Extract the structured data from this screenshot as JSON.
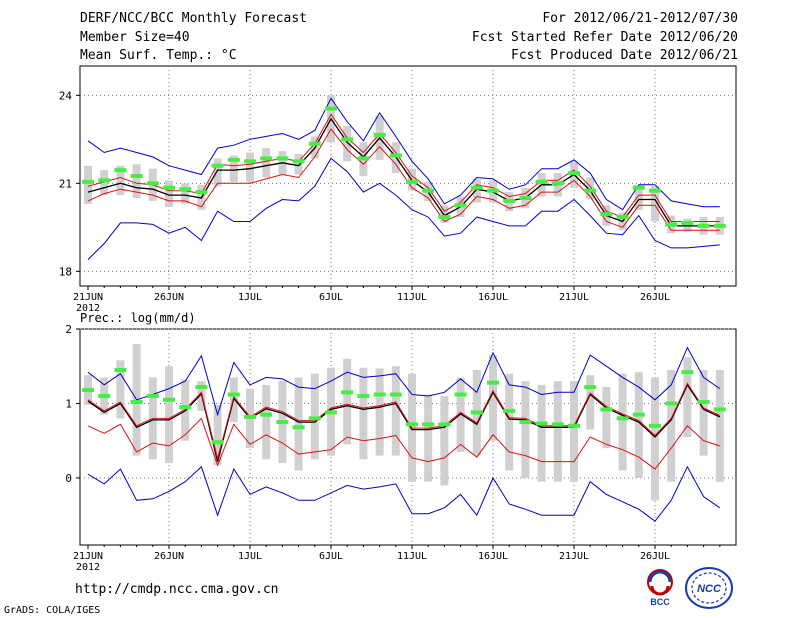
{
  "header": {
    "title": "DERF/NCC/BCC Monthly Forecast",
    "member_size": "Member Size=40",
    "variable1": "Mean Surf. Temp.: °C",
    "period": "For 2012/06/21-2012/07/30",
    "fcst_started": "Fcst Started Refer Date 2012/06/20",
    "fcst_produced": "Fcst Produced Date 2012/06/21"
  },
  "footer": {
    "url": "http://cmdp.ncc.cma.gov.cn",
    "grads": "GrADS: COLA/IGES"
  },
  "logos": {
    "bcc": "BCC",
    "ncc": "NCC"
  },
  "colors": {
    "ensemble_bar": "#d0d0d0",
    "green_mark": "#44ee44",
    "mean_line": "#000000",
    "red_line": "#dd1111",
    "blue_line": "#0000cc",
    "grid": "#777777"
  },
  "chart_data": [
    {
      "type": "line",
      "title": "Mean Surf. Temp.: °C",
      "x_tick_labels": [
        "21JUN",
        "26JUN",
        "1JUL",
        "6JUL",
        "11JUL",
        "16JUL",
        "21JUL",
        "26JUL"
      ],
      "x_sub_label": "2012",
      "ylim": [
        17.5,
        25
      ],
      "y_ticks": [
        18,
        21,
        24
      ],
      "x_days": [
        0,
        1,
        2,
        3,
        4,
        5,
        6,
        7,
        8,
        9,
        10,
        11,
        12,
        13,
        14,
        15,
        16,
        17,
        18,
        19,
        20,
        21,
        22,
        23,
        24,
        25,
        26,
        27,
        28,
        29,
        30,
        31,
        32,
        33,
        34,
        35,
        36,
        37,
        38,
        39
      ],
      "series": [
        {
          "name": "ensemble mean",
          "color": "black",
          "values": [
            20.7,
            20.85,
            21.0,
            20.85,
            20.8,
            20.6,
            20.6,
            20.5,
            21.45,
            21.45,
            21.5,
            21.6,
            21.7,
            21.6,
            22.2,
            23.2,
            22.4,
            21.9,
            22.55,
            21.9,
            21.1,
            20.7,
            19.9,
            20.2,
            20.8,
            20.7,
            20.4,
            20.5,
            20.95,
            20.95,
            21.3,
            20.75,
            19.9,
            19.7,
            20.45,
            20.45,
            19.55,
            19.55,
            19.55,
            19.55
          ]
        },
        {
          "name": "upper red",
          "color": "red",
          "values": [
            20.9,
            21.05,
            21.2,
            21.0,
            20.95,
            20.75,
            20.75,
            20.65,
            21.65,
            21.6,
            21.65,
            21.75,
            21.85,
            21.75,
            22.35,
            23.35,
            22.55,
            22.05,
            22.7,
            22.05,
            21.25,
            20.85,
            20.05,
            20.35,
            20.95,
            20.85,
            20.55,
            20.65,
            21.1,
            21.1,
            21.45,
            20.9,
            20.05,
            19.85,
            20.6,
            20.6,
            19.7,
            19.7,
            19.7,
            19.7
          ]
        },
        {
          "name": "lower red",
          "color": "red",
          "values": [
            20.4,
            20.65,
            20.8,
            20.7,
            20.6,
            20.4,
            20.4,
            20.2,
            21.0,
            21.0,
            21.0,
            21.15,
            21.3,
            21.2,
            21.9,
            22.85,
            22.15,
            21.65,
            22.25,
            21.65,
            20.85,
            20.5,
            19.7,
            19.95,
            20.55,
            20.45,
            20.15,
            20.25,
            20.7,
            20.7,
            21.1,
            20.55,
            19.7,
            19.5,
            20.25,
            20.25,
            19.4,
            19.4,
            19.4,
            19.4
          ]
        },
        {
          "name": "upper blue",
          "color": "blue",
          "values": [
            22.45,
            22.05,
            22.2,
            22.05,
            21.9,
            21.6,
            21.45,
            21.3,
            22.2,
            22.3,
            22.5,
            22.6,
            22.7,
            22.5,
            22.8,
            23.9,
            23.1,
            22.45,
            23.4,
            22.6,
            21.75,
            21.15,
            20.3,
            20.6,
            21.2,
            21.15,
            20.8,
            20.95,
            21.5,
            21.5,
            21.8,
            21.35,
            20.45,
            20.1,
            20.95,
            20.95,
            20.4,
            20.3,
            20.2,
            20.2
          ]
        },
        {
          "name": "lower blue",
          "color": "blue",
          "values": [
            18.4,
            18.95,
            19.65,
            19.65,
            19.6,
            19.3,
            19.5,
            19.05,
            20.05,
            19.7,
            19.7,
            20.15,
            20.45,
            20.4,
            20.9,
            21.85,
            21.4,
            20.7,
            21.0,
            20.6,
            20.1,
            19.85,
            19.2,
            19.3,
            19.85,
            19.7,
            19.55,
            19.55,
            20.05,
            20.05,
            20.45,
            19.9,
            19.3,
            19.25,
            19.9,
            19.05,
            18.8,
            18.8,
            18.85,
            18.9
          ]
        },
        {
          "name": "green mark",
          "color": "green",
          "values": [
            21.05,
            21.1,
            21.45,
            21.25,
            21.0,
            20.85,
            20.8,
            20.7,
            21.6,
            21.8,
            21.75,
            21.85,
            21.85,
            21.75,
            22.35,
            23.55,
            22.5,
            21.85,
            22.65,
            21.95,
            21.05,
            20.75,
            19.85,
            20.25,
            20.85,
            20.75,
            20.4,
            20.5,
            21.05,
            21.0,
            21.35,
            20.75,
            19.95,
            19.85,
            20.85,
            20.75,
            19.6,
            19.65,
            19.55,
            19.55
          ]
        }
      ],
      "ensemble_range": {
        "top": [
          21.6,
          21.45,
          21.6,
          21.65,
          21.5,
          21.1,
          21.0,
          20.95,
          21.85,
          21.95,
          22.05,
          22.2,
          22.1,
          22.0,
          22.6,
          24.0,
          22.95,
          22.4,
          23.3,
          22.4,
          21.5,
          21.05,
          20.25,
          20.55,
          21.15,
          21.1,
          20.7,
          20.85,
          21.35,
          21.35,
          21.75,
          21.2,
          20.25,
          20.0,
          20.95,
          20.9,
          19.9,
          19.8,
          19.85,
          19.85
        ],
        "bottom": [
          20.3,
          20.6,
          20.6,
          20.5,
          20.4,
          20.2,
          20.3,
          20.1,
          20.9,
          21.05,
          21.05,
          21.2,
          21.3,
          21.3,
          21.85,
          22.4,
          21.75,
          21.25,
          21.8,
          21.35,
          20.75,
          20.4,
          19.65,
          19.85,
          20.35,
          20.35,
          20.05,
          20.15,
          20.55,
          20.55,
          20.85,
          20.45,
          19.55,
          19.4,
          20.1,
          19.7,
          19.3,
          19.35,
          19.25,
          19.25
        ]
      }
    },
    {
      "type": "line",
      "title": "Prec.: log(mm/d)",
      "x_tick_labels": [
        "21JUN",
        "26JUN",
        "1JUL",
        "6JUL",
        "11JUL",
        "16JUL",
        "21JUL",
        "26JUL"
      ],
      "x_sub_label": "2012",
      "ylim": [
        -0.9,
        2
      ],
      "y_ticks": [
        0,
        1,
        2
      ],
      "x_days": [
        0,
        1,
        2,
        3,
        4,
        5,
        6,
        7,
        8,
        9,
        10,
        11,
        12,
        13,
        14,
        15,
        16,
        17,
        18,
        19,
        20,
        21,
        22,
        23,
        24,
        25,
        26,
        27,
        28,
        29,
        30,
        31,
        32,
        33,
        34,
        35,
        36,
        37,
        38,
        39
      ],
      "series": [
        {
          "name": "ensemble mean",
          "color": "black",
          "values": [
            1.03,
            0.88,
            1.0,
            0.68,
            0.78,
            0.78,
            0.9,
            1.13,
            0.22,
            1.07,
            0.8,
            0.93,
            0.87,
            0.75,
            0.75,
            0.92,
            0.97,
            0.92,
            0.95,
            1.0,
            0.65,
            0.65,
            0.68,
            0.86,
            0.72,
            1.15,
            0.79,
            0.78,
            0.68,
            0.68,
            0.68,
            1.12,
            0.94,
            0.84,
            0.75,
            0.55,
            0.78,
            1.25,
            0.92,
            0.82
          ]
        },
        {
          "name": "upper red",
          "color": "red",
          "values": [
            1.05,
            0.9,
            1.02,
            0.7,
            0.8,
            0.8,
            0.92,
            1.15,
            0.26,
            1.09,
            0.82,
            0.95,
            0.89,
            0.77,
            0.77,
            0.94,
            0.99,
            0.94,
            0.97,
            1.02,
            0.67,
            0.67,
            0.7,
            0.88,
            0.74,
            1.17,
            0.81,
            0.8,
            0.7,
            0.7,
            0.7,
            1.14,
            0.96,
            0.86,
            0.77,
            0.57,
            0.8,
            1.27,
            0.94,
            0.84
          ]
        },
        {
          "name": "lower red",
          "color": "red",
          "values": [
            0.7,
            0.6,
            0.72,
            0.35,
            0.47,
            0.43,
            0.58,
            0.8,
            0.17,
            0.72,
            0.45,
            0.58,
            0.47,
            0.32,
            0.35,
            0.38,
            0.55,
            0.5,
            0.53,
            0.57,
            0.27,
            0.22,
            0.27,
            0.45,
            0.28,
            0.58,
            0.35,
            0.3,
            0.22,
            0.22,
            0.22,
            0.55,
            0.45,
            0.38,
            0.28,
            0.12,
            0.4,
            0.7,
            0.5,
            0.43
          ]
        },
        {
          "name": "upper blue",
          "color": "blue",
          "values": [
            1.42,
            1.25,
            1.4,
            1.05,
            1.12,
            1.2,
            1.3,
            1.64,
            0.85,
            1.55,
            1.25,
            1.35,
            1.33,
            1.22,
            1.2,
            1.3,
            1.42,
            1.35,
            1.37,
            1.4,
            1.12,
            1.1,
            1.15,
            1.33,
            1.15,
            1.68,
            1.25,
            1.22,
            1.12,
            1.15,
            1.15,
            1.65,
            1.5,
            1.35,
            1.22,
            1.05,
            1.25,
            1.75,
            1.35,
            1.2
          ]
        },
        {
          "name": "lower blue",
          "color": "blue",
          "values": [
            0.05,
            -0.08,
            0.12,
            -0.3,
            -0.28,
            -0.18,
            -0.05,
            0.15,
            -0.5,
            0.12,
            -0.22,
            -0.12,
            -0.2,
            -0.3,
            -0.3,
            -0.2,
            -0.1,
            -0.15,
            -0.12,
            -0.08,
            -0.48,
            -0.48,
            -0.4,
            -0.22,
            -0.5,
            0.0,
            -0.35,
            -0.42,
            -0.5,
            -0.5,
            -0.5,
            -0.05,
            -0.22,
            -0.32,
            -0.42,
            -0.58,
            -0.3,
            0.15,
            -0.25,
            -0.4
          ]
        },
        {
          "name": "green mark",
          "color": "green",
          "values": [
            1.18,
            1.1,
            1.45,
            1.02,
            1.1,
            1.05,
            0.95,
            1.22,
            0.48,
            1.12,
            0.82,
            0.85,
            0.75,
            0.68,
            0.8,
            0.88,
            1.15,
            1.1,
            1.12,
            1.12,
            0.72,
            0.72,
            0.72,
            1.12,
            0.88,
            1.28,
            0.9,
            0.75,
            0.73,
            0.72,
            0.7,
            1.22,
            0.92,
            0.8,
            0.85,
            0.7,
            1.0,
            1.42,
            1.02,
            0.92
          ]
        }
      ],
      "ensemble_range": {
        "top": [
          1.38,
          1.35,
          1.58,
          1.8,
          1.35,
          1.5,
          1.32,
          1.3,
          0.98,
          1.35,
          1.2,
          1.25,
          1.3,
          1.35,
          1.4,
          1.48,
          1.6,
          1.48,
          1.47,
          1.5,
          1.4,
          1.12,
          1.1,
          1.35,
          1.45,
          1.65,
          1.4,
          1.3,
          1.25,
          1.3,
          1.3,
          1.38,
          1.22,
          1.4,
          1.42,
          1.35,
          1.45,
          1.62,
          1.45,
          1.45
        ],
        "bottom": [
          0.98,
          0.85,
          0.8,
          0.3,
          0.25,
          0.2,
          0.5,
          0.9,
          0.17,
          0.75,
          0.4,
          0.25,
          0.2,
          0.1,
          0.25,
          0.3,
          0.45,
          0.25,
          0.3,
          0.3,
          -0.05,
          -0.05,
          -0.1,
          0.35,
          0.3,
          0.5,
          0.1,
          0.0,
          -0.05,
          -0.05,
          -0.05,
          0.65,
          0.4,
          0.1,
          0.0,
          -0.3,
          -0.05,
          0.55,
          0.3,
          -0.05
        ]
      }
    }
  ]
}
